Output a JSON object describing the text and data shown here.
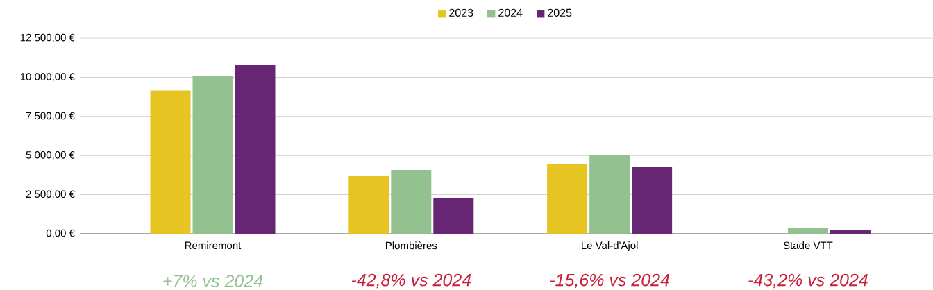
{
  "chart_data": {
    "type": "bar",
    "categories": [
      "Remiremont",
      "Plombières",
      "Le Val-d'Ajol",
      "Stade VTT"
    ],
    "series": [
      {
        "name": "2023",
        "color": "#e6c522",
        "values": [
          9150,
          3680,
          4430,
          null
        ]
      },
      {
        "name": "2024",
        "color": "#93c190",
        "values": [
          10070,
          4080,
          5050,
          400
        ]
      },
      {
        "name": "2025",
        "color": "#662673",
        "values": [
          10800,
          2300,
          4270,
          220
        ]
      }
    ],
    "ylim": [
      0,
      12500
    ],
    "yticks": [
      {
        "value": 0,
        "label": "0,00 €"
      },
      {
        "value": 2500,
        "label": "2 500,00 €"
      },
      {
        "value": 5000,
        "label": "5 000,00 €"
      },
      {
        "value": 7500,
        "label": "7 500,00 €"
      },
      {
        "value": 10000,
        "label": "10 000,00 €"
      },
      {
        "value": 12500,
        "label": "12 500,00 €"
      }
    ],
    "grid": "y",
    "legend": "top",
    "annotations": [
      "+7% vs 2024",
      "-42,8% vs 2024",
      "-15,6% vs 2024",
      "-43,2% vs 2024"
    ]
  }
}
